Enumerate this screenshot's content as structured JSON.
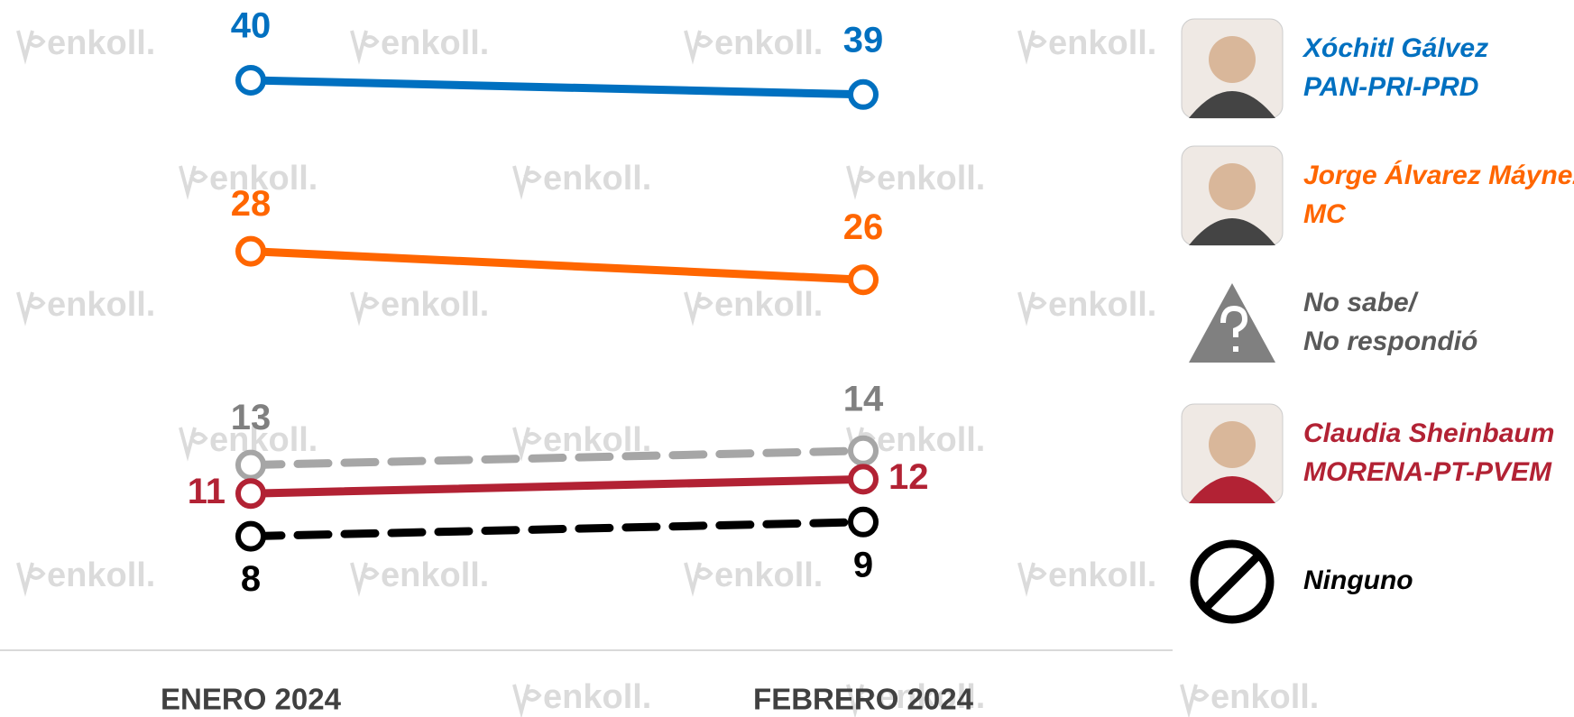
{
  "chart_data": {
    "type": "line",
    "categories": [
      "ENERO 2024",
      "FEBRERO 2024"
    ],
    "ylim": [
      0,
      45
    ],
    "watermark": "enkoll.",
    "series": [
      {
        "name": "Xóchitl Gálvez",
        "party": "PAN-PRI-PRD",
        "color": "#0070c0",
        "dashed": false,
        "values": [
          40,
          39
        ]
      },
      {
        "name": "Jorge Álvarez Máynez",
        "party": "MC",
        "color": "#ff6600",
        "dashed": false,
        "values": [
          28,
          26
        ]
      },
      {
        "name": "No sabe/",
        "party": "No respondió",
        "color": "#a6a6a6",
        "dashed": true,
        "values": [
          13,
          14
        ]
      },
      {
        "name": "Claudia Sheinbaum",
        "party": "MORENA-PT-PVEM",
        "color": "#b22234",
        "dashed": false,
        "values": [
          11,
          12
        ]
      },
      {
        "name": "Ninguno",
        "color": "#000000",
        "dashed": true,
        "values": [
          8,
          9
        ]
      }
    ]
  }
}
